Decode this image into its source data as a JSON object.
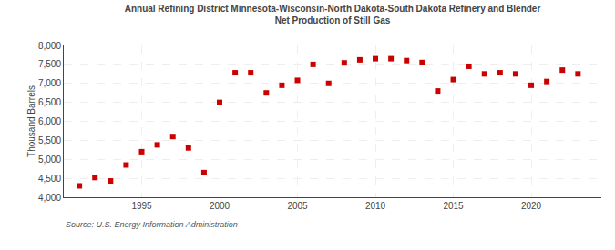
{
  "chart_data": {
    "type": "scatter",
    "title": "Annual Refining District Minnesota-Wisconsin-North Dakota-South Dakota Refinery and Blender",
    "subtitle": "Net Production of Still Gas",
    "y_label": "Thousand Barrels",
    "annotations": [
      "Source: U.S. Energy Information Administration"
    ],
    "x": [
      1991,
      1992,
      1993,
      1994,
      1995,
      1996,
      1997,
      1998,
      1999,
      2000,
      2001,
      2002,
      2003,
      2004,
      2005,
      2006,
      2007,
      2008,
      2009,
      2010,
      2011,
      2012,
      2013,
      2014,
      2015,
      2016,
      2017,
      2018,
      2019,
      2020,
      2021,
      2022,
      2023
    ],
    "values": [
      4300,
      4520,
      4430,
      4850,
      5200,
      5380,
      5600,
      5300,
      4650,
      6500,
      7280,
      7280,
      6750,
      6950,
      7080,
      7500,
      7000,
      7540,
      7620,
      7650,
      7650,
      7600,
      7550,
      6800,
      7100,
      7450,
      7250,
      7280,
      7250,
      6950,
      7050,
      7350,
      7250
    ],
    "color": "#cc0000",
    "marker": "square",
    "xlim": [
      1990,
      2024.5
    ],
    "xticks": [
      1995,
      2000,
      2005,
      2010,
      2015,
      2020
    ],
    "ylim": [
      4000,
      8000
    ],
    "yticks": [
      {
        "value": 4000,
        "label": "4,000"
      },
      {
        "value": 4500,
        "label": "4,500"
      },
      {
        "value": 5000,
        "label": "5,000"
      },
      {
        "value": 5500,
        "label": "5,500"
      },
      {
        "value": 6000,
        "label": "6,000"
      },
      {
        "value": 6500,
        "label": "6,500"
      },
      {
        "value": 7000,
        "label": "7,000"
      },
      {
        "value": 7500,
        "label": "7,500"
      },
      {
        "value": 8000,
        "label": "8,000"
      }
    ],
    "grid": true
  }
}
